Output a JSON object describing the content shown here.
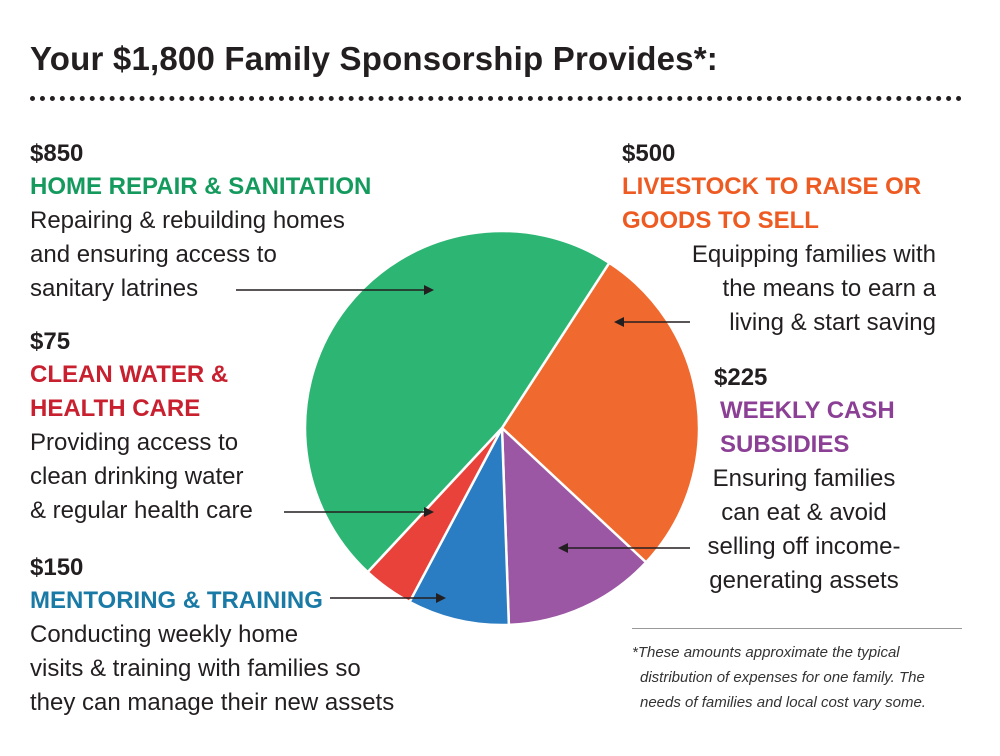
{
  "title": "Your $1,800 Family Sponsorship Provides*:",
  "chart_data": {
    "type": "pie",
    "total": 1800,
    "slices": [
      {
        "key": "livestock",
        "value": 500,
        "amount": "$500",
        "category_lines": [
          "LIVESTOCK TO RAISE OR",
          "GOODS TO SELL"
        ],
        "description_lines": [
          "Equipping families with",
          "the means to earn a",
          "living & start saving"
        ],
        "color": "#f0692f"
      },
      {
        "key": "cash",
        "value": 225,
        "amount": "$225",
        "category_lines": [
          "WEEKLY CASH",
          "SUBSIDIES"
        ],
        "description_lines": [
          "Ensuring families",
          "can eat & avoid",
          "selling off income-",
          "generating assets"
        ],
        "color": "#9b57a3"
      },
      {
        "key": "mentoring",
        "value": 150,
        "amount": "$150",
        "category_lines": [
          "MENTORING & TRAINING"
        ],
        "description_lines": [
          "Conducting weekly home",
          "visits & training with families so",
          "they can manage their new assets"
        ],
        "color": "#2a7dc2"
      },
      {
        "key": "water",
        "value": 75,
        "amount": "$75",
        "category_lines": [
          "CLEAN WATER &",
          "HEALTH CARE"
        ],
        "description_lines": [
          "Providing access to",
          "clean drinking water",
          "& regular health care"
        ],
        "color": "#e8423a"
      },
      {
        "key": "home",
        "value": 850,
        "amount": "$850",
        "category_lines": [
          "HOME REPAIR & SANITATION"
        ],
        "description_lines": [
          "Repairing & rebuilding homes",
          "and ensuring access to",
          "sanitary latrines"
        ],
        "color": "#2db673"
      }
    ],
    "title": "Your $1,800 Family Sponsorship Provides*:",
    "category_colors": {
      "home": "#159a5e",
      "livestock": "#ee5b22",
      "cash": "#8b3f95",
      "water": "#c8202f",
      "mentoring": "#1a7aa6"
    }
  },
  "footnote": {
    "lines": [
      "*These amounts approximate the typical",
      "distribution of expenses for one family. The",
      "needs of families and local cost vary some."
    ]
  }
}
